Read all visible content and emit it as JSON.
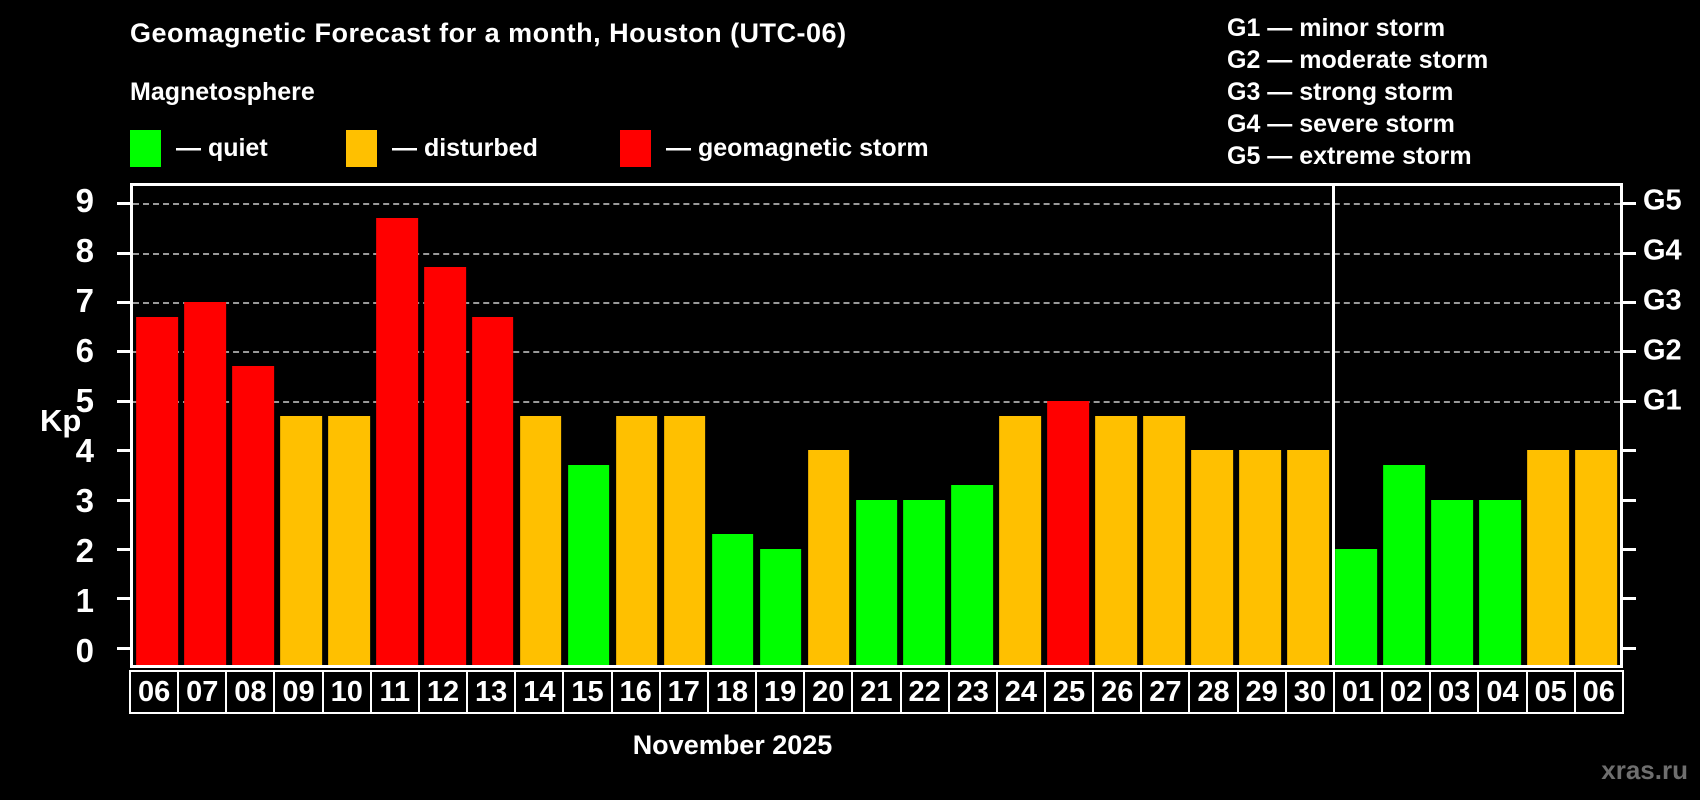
{
  "title": "Geomagnetic Forecast for a month, Houston (UTC-06)",
  "subtitle": "Magnetosphere",
  "legend": {
    "items": [
      {
        "key": "quiet",
        "label": "— quiet",
        "color": "#00ff00"
      },
      {
        "key": "disturbed",
        "label": "— disturbed",
        "color": "#ffc000"
      },
      {
        "key": "storm",
        "label": "— geomagnetic storm",
        "color": "#ff0000"
      }
    ]
  },
  "g_scale_legend": [
    "G1 — minor storm",
    "G2 — moderate storm",
    "G3 — strong storm",
    "G4 — severe storm",
    "G5 — extreme storm"
  ],
  "watermark": "xras.ru",
  "chart_data": {
    "type": "bar",
    "title": "Geomagnetic Forecast for a month, Houston (UTC-06)",
    "xlabel": "November 2025",
    "ylabel": "Kp",
    "ylim": [
      0,
      9
    ],
    "y_ticks": [
      0,
      1,
      2,
      3,
      4,
      5,
      6,
      7,
      8,
      9
    ],
    "gridlines_at_kp": [
      5,
      6,
      7,
      8,
      9
    ],
    "grid": "dashed horizontal at G-storm levels only",
    "legend_position": "top",
    "right_axis_labels": [
      {
        "label": "G1",
        "kp": 5
      },
      {
        "label": "G2",
        "kp": 6
      },
      {
        "label": "G3",
        "kp": 7
      },
      {
        "label": "G4",
        "kp": 8
      },
      {
        "label": "G5",
        "kp": 9
      }
    ],
    "categories": [
      "06",
      "07",
      "08",
      "09",
      "10",
      "11",
      "12",
      "13",
      "14",
      "15",
      "16",
      "17",
      "18",
      "19",
      "20",
      "21",
      "22",
      "23",
      "24",
      "25",
      "26",
      "27",
      "28",
      "29",
      "30",
      "01",
      "02",
      "03",
      "04",
      "05",
      "06"
    ],
    "values": [
      6.7,
      7.0,
      5.7,
      4.7,
      4.7,
      8.7,
      7.7,
      6.7,
      4.7,
      3.7,
      4.7,
      4.7,
      2.3,
      2.0,
      4.0,
      3.0,
      3.0,
      3.3,
      4.7,
      5.0,
      4.7,
      4.7,
      4.0,
      4.0,
      4.0,
      2.0,
      3.7,
      3.0,
      3.0,
      4.0,
      4.0
    ],
    "levels": [
      "storm",
      "storm",
      "storm",
      "disturbed",
      "disturbed",
      "storm",
      "storm",
      "storm",
      "disturbed",
      "quiet",
      "disturbed",
      "disturbed",
      "quiet",
      "quiet",
      "disturbed",
      "quiet",
      "quiet",
      "quiet",
      "disturbed",
      "storm",
      "disturbed",
      "disturbed",
      "disturbed",
      "disturbed",
      "disturbed",
      "quiet",
      "quiet",
      "quiet",
      "quiet",
      "disturbed",
      "disturbed"
    ],
    "colors": {
      "quiet": "#00ff00",
      "disturbed": "#ffc000",
      "storm": "#ff0000"
    },
    "month_separator_before_index": 25
  }
}
